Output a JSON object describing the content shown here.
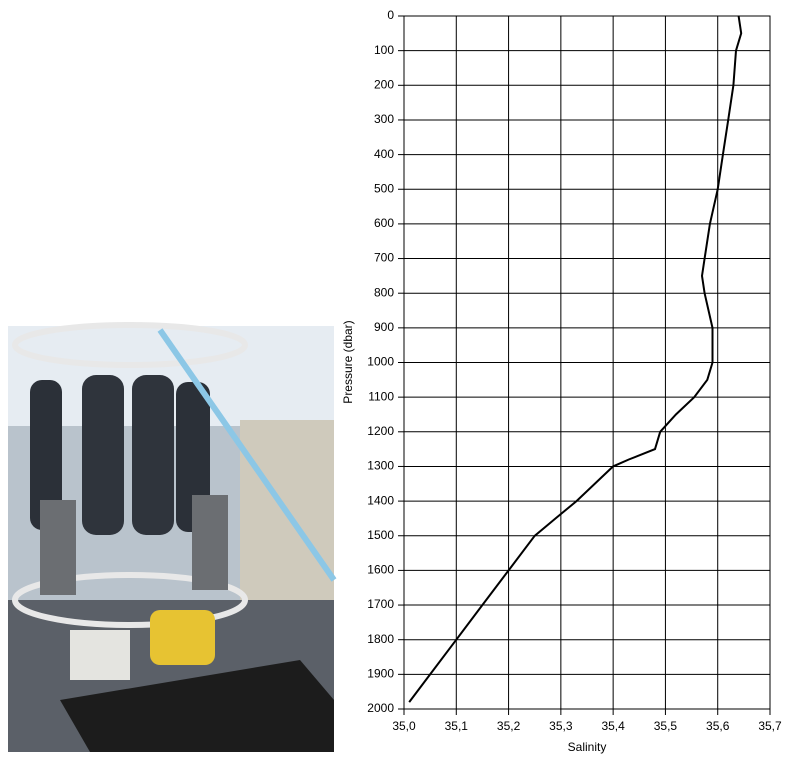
{
  "chart_data": {
    "type": "line",
    "xlabel": "Salinity",
    "ylabel": "Pressure (dbar)",
    "x": [
      35.64,
      35.645,
      35.635,
      35.63,
      35.62,
      35.61,
      35.6,
      35.585,
      35.575,
      35.57,
      35.575,
      35.59,
      35.59,
      35.58,
      35.555,
      35.52,
      35.49,
      35.48,
      35.43,
      35.4,
      35.33,
      35.29,
      35.25,
      35.2,
      35.15,
      35.1,
      35.05,
      35.01
    ],
    "values": [
      0,
      50,
      100,
      200,
      300,
      400,
      500,
      600,
      700,
      750,
      800,
      900,
      1000,
      1050,
      1100,
      1150,
      1200,
      1250,
      1280,
      1300,
      1400,
      1450,
      1500,
      1600,
      1700,
      1800,
      1900,
      1980
    ],
    "color": "#000000",
    "xlim": [
      35.0,
      35.7
    ],
    "xticks": [
      {
        "value": 35.0,
        "label": "35,0"
      },
      {
        "value": 35.1,
        "label": "35,1"
      },
      {
        "value": 35.2,
        "label": "35,2"
      },
      {
        "value": 35.3,
        "label": "35,3"
      },
      {
        "value": 35.4,
        "label": "35,4"
      },
      {
        "value": 35.5,
        "label": "35,5"
      },
      {
        "value": 35.6,
        "label": "35,6"
      },
      {
        "value": 35.7,
        "label": "35,7"
      }
    ],
    "ylim": [
      0,
      2000
    ],
    "yticks": [
      0,
      100,
      200,
      300,
      400,
      500,
      600,
      700,
      800,
      900,
      1000,
      1100,
      1200,
      1300,
      1400,
      1500,
      1600,
      1700,
      1800,
      1900,
      2000
    ],
    "y_inverted": true,
    "grid": true
  }
}
